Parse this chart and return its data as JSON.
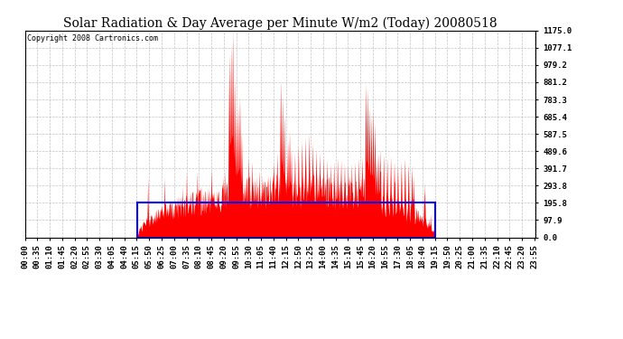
{
  "title": "Solar Radiation & Day Average per Minute W/m2 (Today) 20080518",
  "copyright": "Copyright 2008 Cartronics.com",
  "y_ticks": [
    0.0,
    97.9,
    195.8,
    293.8,
    391.7,
    489.6,
    587.5,
    685.4,
    783.3,
    881.2,
    979.2,
    1077.1,
    1175.0
  ],
  "ylim": [
    0,
    1175.0
  ],
  "avg_level": 195.8,
  "bg_color": "#ffffff",
  "plot_bg_color": "#ffffff",
  "grid_color": "#aaaaaa",
  "fill_color": "#ff0000",
  "line_color": "#ff0000",
  "avg_box_color": "#0000ff",
  "title_fontsize": 10,
  "copyright_fontsize": 6,
  "tick_fontsize": 6.5,
  "sunrise_min": 316,
  "sunset_min": 1156
}
